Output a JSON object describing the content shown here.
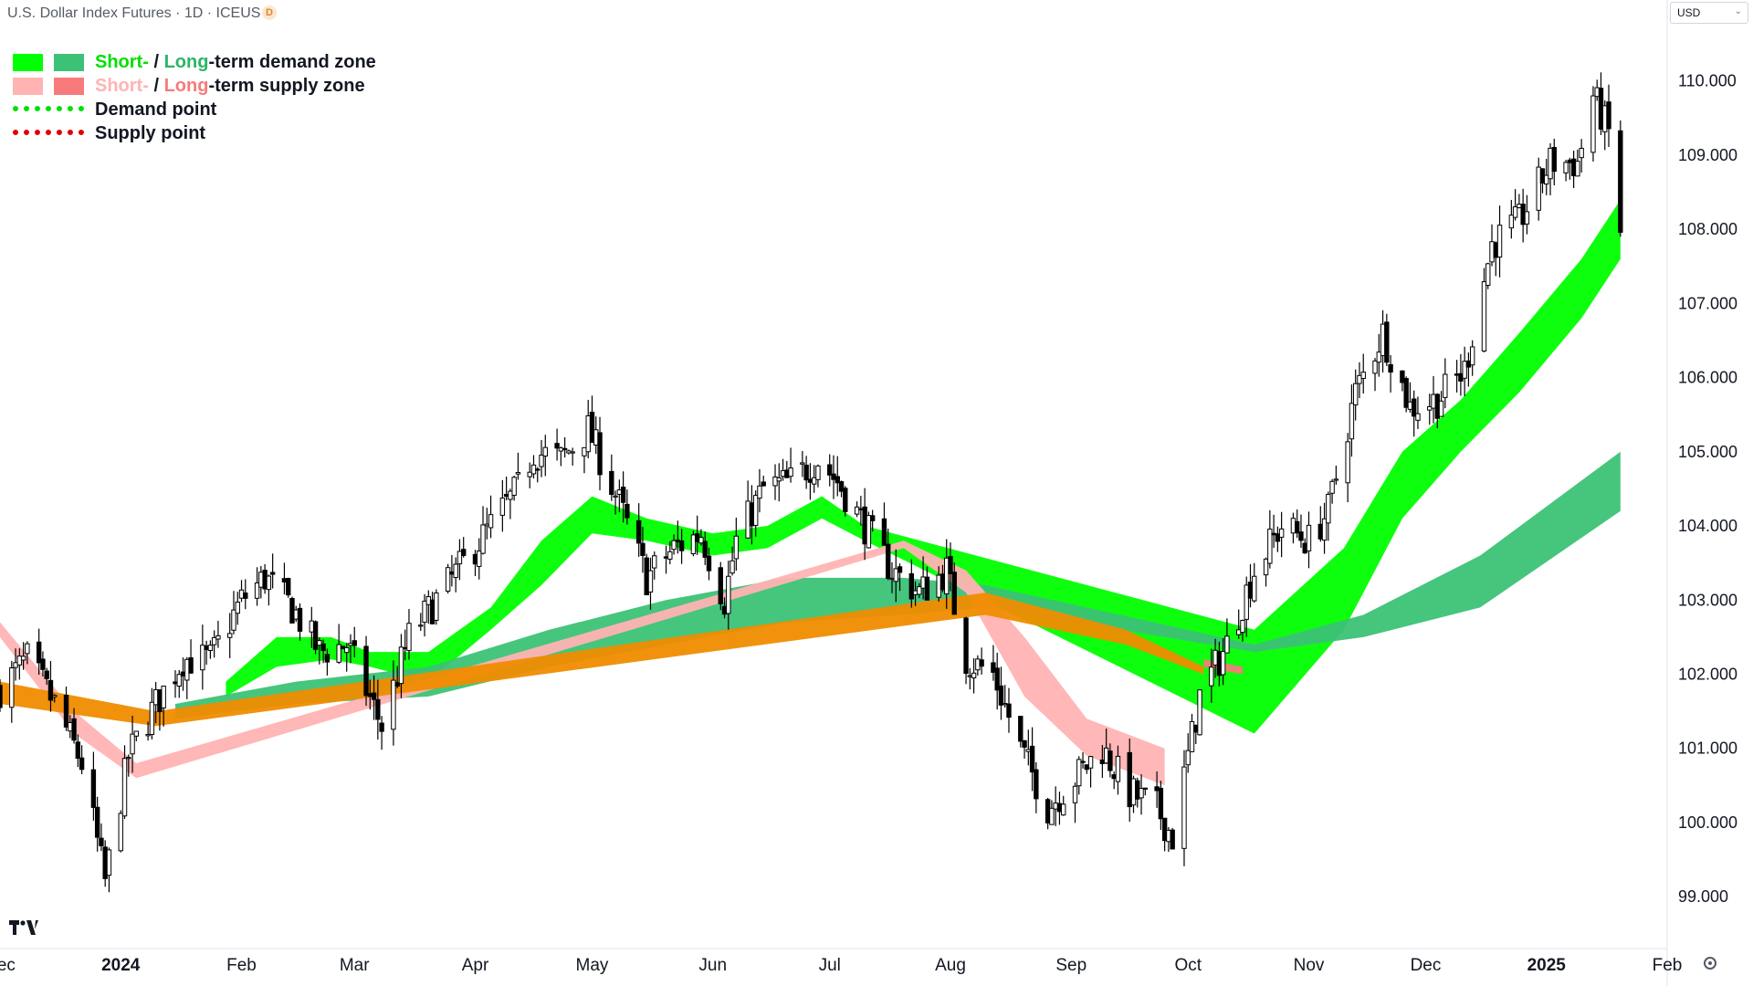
{
  "header": {
    "title": "U.S. Dollar Index Futures · 1D · ICEUS",
    "badge": "D",
    "currency": "USD",
    "currency_caret": "⌄"
  },
  "legend": {
    "row1": {
      "short": "Short-",
      "sep": " / ",
      "long": "Long",
      "rest": "-term demand zone"
    },
    "row2": {
      "short": "Short-",
      "sep": " / ",
      "long": "Long",
      "rest": "-term supply zone"
    },
    "row3": "Demand point",
    "row4": "Supply point"
  },
  "colors": {
    "demand_short": "#00ff00",
    "demand_long": "#3cc276",
    "supply_short": "#ffb3b3",
    "supply_long": "#f77b7b",
    "neutral_zone": "#f08c00",
    "demand_point": "#00e000",
    "supply_point": "#e00000",
    "axis_text": "#131722",
    "candle": "#000000"
  },
  "icons": {
    "logo": "tradingview-logo-icon",
    "settings": "settings-icon"
  },
  "chart_data": {
    "type": "candlestick",
    "title": "U.S. Dollar Index Futures · 1D · ICEUS",
    "xlabel": "",
    "ylabel": "",
    "ylim": [
      98.3,
      110.6
    ],
    "y_ticks": [
      "99.000",
      "100.000",
      "101.000",
      "102.000",
      "103.000",
      "104.000",
      "105.000",
      "106.000",
      "107.000",
      "108.000",
      "109.000",
      "110.000"
    ],
    "x_ticks": [
      "Dec",
      "2024",
      "Feb",
      "Mar",
      "Apr",
      "May",
      "Jun",
      "Jul",
      "Aug",
      "Sep",
      "Oct",
      "Nov",
      "Dec",
      "2025",
      "Feb"
    ],
    "bold_x_ticks": [
      "2024",
      "2025"
    ],
    "x_range": [
      "2023-12-01",
      "2025-02-01"
    ],
    "close_anchors": [
      [
        "2023-12-01",
        101.8
      ],
      [
        "2023-12-08",
        102.2
      ],
      [
        "2023-12-15",
        101.6
      ],
      [
        "2023-12-22",
        100.8
      ],
      [
        "2023-12-28",
        99.2
      ],
      [
        "2024-01-03",
        100.9
      ],
      [
        "2024-01-10",
        101.6
      ],
      [
        "2024-01-17",
        102.2
      ],
      [
        "2024-01-24",
        102.2
      ],
      [
        "2024-02-01",
        103.0
      ],
      [
        "2024-02-07",
        103.3
      ],
      [
        "2024-02-14",
        102.9
      ],
      [
        "2024-02-21",
        102.3
      ],
      [
        "2024-02-28",
        102.4
      ],
      [
        "2024-03-08",
        101.3
      ],
      [
        "2024-03-15",
        102.5
      ],
      [
        "2024-03-22",
        103.0
      ],
      [
        "2024-03-29",
        103.5
      ],
      [
        "2024-04-05",
        104.0
      ],
      [
        "2024-04-12",
        104.5
      ],
      [
        "2024-04-16",
        105.0
      ],
      [
        "2024-04-23",
        104.9
      ],
      [
        "2024-04-30",
        105.3
      ],
      [
        "2024-05-08",
        104.3
      ],
      [
        "2024-05-15",
        103.3
      ],
      [
        "2024-05-22",
        103.7
      ],
      [
        "2024-05-29",
        103.9
      ],
      [
        "2024-06-04",
        103.0
      ],
      [
        "2024-06-07",
        103.8
      ],
      [
        "2024-06-14",
        104.5
      ],
      [
        "2024-06-21",
        104.6
      ],
      [
        "2024-06-28",
        104.9
      ],
      [
        "2024-07-03",
        104.6
      ],
      [
        "2024-07-10",
        104.0
      ],
      [
        "2024-07-17",
        103.4
      ],
      [
        "2024-07-24",
        103.1
      ],
      [
        "2024-07-31",
        103.4
      ],
      [
        "2024-08-05",
        102.2
      ],
      [
        "2024-08-12",
        102.0
      ],
      [
        "2024-08-19",
        101.0
      ],
      [
        "2024-08-26",
        100.2
      ],
      [
        "2024-09-02",
        100.6
      ],
      [
        "2024-09-09",
        101.0
      ],
      [
        "2024-09-16",
        100.4
      ],
      [
        "2024-09-23",
        100.2
      ],
      [
        "2024-09-27",
        99.8
      ],
      [
        "2024-10-04",
        101.7
      ],
      [
        "2024-10-11",
        102.4
      ],
      [
        "2024-10-18",
        103.4
      ],
      [
        "2024-10-25",
        104.0
      ],
      [
        "2024-11-01",
        103.8
      ],
      [
        "2024-11-06",
        104.2
      ],
      [
        "2024-11-13",
        105.8
      ],
      [
        "2024-11-20",
        106.6
      ],
      [
        "2024-11-27",
        105.6
      ],
      [
        "2024-12-04",
        105.7
      ],
      [
        "2024-12-11",
        106.1
      ],
      [
        "2024-12-18",
        107.8
      ],
      [
        "2024-12-25",
        108.1
      ],
      [
        "2025-01-02",
        108.9
      ],
      [
        "2025-01-09",
        108.9
      ],
      [
        "2025-01-13",
        109.8
      ],
      [
        "2025-01-17",
        109.3
      ],
      [
        "2025-01-20",
        108.0
      ]
    ],
    "zones": [
      {
        "name": "Short-term demand zone",
        "color": "#00ff00",
        "points": [
          [
            "2024-01-28",
            101.9,
            101.7
          ],
          [
            "2024-02-10",
            102.5,
            102.1
          ],
          [
            "2024-02-24",
            102.5,
            102.2
          ],
          [
            "2024-03-05",
            102.3,
            102.1
          ],
          [
            "2024-03-20",
            102.3,
            101.9
          ],
          [
            "2024-04-05",
            102.9,
            102.6
          ],
          [
            "2024-04-18",
            103.8,
            103.2
          ],
          [
            "2024-05-01",
            104.4,
            103.9
          ],
          [
            "2024-05-15",
            104.1,
            103.8
          ],
          [
            "2024-06-01",
            103.9,
            103.6
          ],
          [
            "2024-06-15",
            104.0,
            103.7
          ],
          [
            "2024-06-29",
            104.4,
            104.1
          ],
          [
            "2024-07-10",
            104.0,
            103.8
          ],
          [
            "2024-10-18",
            102.6,
            101.2
          ],
          [
            "2024-11-10",
            103.7,
            102.6
          ],
          [
            "2024-11-25",
            105.0,
            104.1
          ],
          [
            "2024-12-10",
            105.7,
            105.0
          ],
          [
            "2024-12-25",
            106.6,
            105.8
          ],
          [
            "2025-01-10",
            107.6,
            106.8
          ],
          [
            "2025-01-20",
            108.4,
            107.6
          ]
        ]
      },
      {
        "name": "Long-term demand zone",
        "color": "#3cc276",
        "points": [
          [
            "2024-01-15",
            101.6,
            101.4
          ],
          [
            "2024-02-15",
            101.9,
            101.6
          ],
          [
            "2024-03-20",
            102.1,
            101.7
          ],
          [
            "2024-04-20",
            102.6,
            102.1
          ],
          [
            "2024-05-20",
            103.0,
            102.4
          ],
          [
            "2024-06-20",
            103.3,
            102.7
          ],
          [
            "2024-07-20",
            103.3,
            102.8
          ],
          [
            "2024-08-10",
            103.2,
            102.9
          ],
          [
            "2024-10-18",
            102.4,
            102.3
          ],
          [
            "2024-11-15",
            102.8,
            102.5
          ],
          [
            "2024-12-15",
            103.6,
            102.9
          ],
          [
            "2025-01-20",
            105.0,
            104.2
          ]
        ]
      },
      {
        "name": "Short-term supply zone",
        "color": "#ffb3b3",
        "points": [
          [
            "2023-12-01",
            102.7,
            102.5
          ],
          [
            "2023-12-20",
            101.5,
            101.2
          ],
          [
            "2024-01-05",
            100.8,
            100.6
          ],
          [
            "2024-07-20",
            103.8,
            103.7
          ],
          [
            "2024-08-05",
            103.4,
            103.1
          ],
          [
            "2024-08-20",
            102.5,
            101.7
          ],
          [
            "2024-09-05",
            101.4,
            100.9
          ],
          [
            "2024-09-25",
            101.0,
            100.5
          ]
        ]
      },
      {
        "name": "Long-term supply zone",
        "color": "#f77b7b",
        "points": [
          [
            "2024-10-05",
            102.2,
            102.1
          ],
          [
            "2024-10-15",
            102.1,
            102.0
          ]
        ]
      },
      {
        "name": "Transition zone",
        "color": "#f08c00",
        "points": [
          [
            "2023-12-01",
            101.9,
            101.6
          ],
          [
            "2024-01-10",
            101.5,
            101.3
          ],
          [
            "2024-08-10",
            103.1,
            102.8
          ],
          [
            "2024-09-15",
            102.6,
            102.4
          ],
          [
            "2024-10-05",
            102.1,
            102.0
          ]
        ]
      }
    ]
  }
}
